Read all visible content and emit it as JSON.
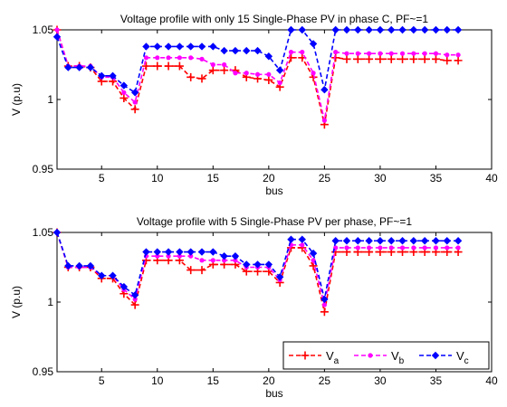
{
  "chart_data": [
    {
      "type": "line",
      "title": "Voltage profile with only 15 Single-Phase PV in phase C, PF~=1",
      "xlabel": "bus",
      "ylabel": "V (p.u)",
      "xlim": [
        1,
        40
      ],
      "ylim": [
        0.95,
        1.05
      ],
      "xticks": [
        5,
        10,
        15,
        20,
        25,
        30,
        35,
        40
      ],
      "xtick_labels": [
        "5",
        "10",
        "15",
        "20",
        "25",
        "30",
        "35",
        "40"
      ],
      "yticks": [
        0.95,
        1,
        1.05
      ],
      "ytick_labels": [
        "0.95",
        "1",
        "1.05"
      ],
      "grid": false,
      "legend": null,
      "x": [
        1,
        2,
        3,
        4,
        5,
        6,
        7,
        8,
        9,
        10,
        11,
        12,
        13,
        14,
        15,
        16,
        17,
        18,
        19,
        20,
        21,
        22,
        23,
        24,
        25,
        26,
        27,
        28,
        29,
        30,
        31,
        32,
        33,
        34,
        35,
        36,
        37
      ],
      "series": [
        {
          "key": "a",
          "color": "#ff0000",
          "marker": "plus",
          "values": [
            1.05,
            1.024,
            1.024,
            1.023,
            1.013,
            1.013,
            1.001,
            0.993,
            1.024,
            1.024,
            1.024,
            1.024,
            1.016,
            1.015,
            1.021,
            1.021,
            1.021,
            1.016,
            1.015,
            1.014,
            1.009,
            1.03,
            1.03,
            1.016,
            0.982,
            1.03,
            1.029,
            1.029,
            1.029,
            1.029,
            1.029,
            1.029,
            1.029,
            1.029,
            1.029,
            1.028,
            1.028
          ]
        },
        {
          "key": "b",
          "color": "#ff00ff",
          "marker": "dot",
          "values": [
            1.05,
            1.024,
            1.024,
            1.024,
            1.016,
            1.016,
            1.005,
            0.998,
            1.03,
            1.03,
            1.03,
            1.03,
            1.03,
            1.029,
            1.025,
            1.025,
            1.019,
            1.019,
            1.018,
            1.018,
            1.012,
            1.034,
            1.034,
            1.019,
            0.985,
            1.034,
            1.033,
            1.033,
            1.033,
            1.033,
            1.033,
            1.033,
            1.033,
            1.033,
            1.033,
            1.032,
            1.032
          ]
        },
        {
          "key": "c",
          "color": "#0000ff",
          "marker": "diamond",
          "values": [
            1.045,
            1.023,
            1.023,
            1.023,
            1.017,
            1.017,
            1.01,
            1.005,
            1.038,
            1.038,
            1.038,
            1.038,
            1.038,
            1.038,
            1.038,
            1.035,
            1.035,
            1.035,
            1.035,
            1.031,
            1.021,
            1.05,
            1.05,
            1.04,
            1.007,
            1.05,
            1.05,
            1.05,
            1.05,
            1.05,
            1.05,
            1.05,
            1.05,
            1.05,
            1.05,
            1.05,
            1.05
          ]
        }
      ]
    },
    {
      "type": "line",
      "title": "Voltage profile with 5 Single-Phase PV per phase, PF~=1",
      "xlabel": "bus",
      "ylabel": "V (p.u)",
      "xlim": [
        1,
        40
      ],
      "ylim": [
        0.95,
        1.05
      ],
      "xticks": [
        5,
        10,
        15,
        20,
        25,
        30,
        35,
        40
      ],
      "xtick_labels": [
        "5",
        "10",
        "15",
        "20",
        "25",
        "30",
        "35",
        "40"
      ],
      "yticks": [
        0.95,
        1,
        1.05
      ],
      "ytick_labels": [
        "0.95",
        "1",
        "1.05"
      ],
      "grid": false,
      "legend": "bottom-right",
      "x": [
        1,
        2,
        3,
        4,
        5,
        6,
        7,
        8,
        9,
        10,
        11,
        12,
        13,
        14,
        15,
        16,
        17,
        18,
        19,
        20,
        21,
        22,
        23,
        24,
        25,
        26,
        27,
        28,
        29,
        30,
        31,
        32,
        33,
        34,
        35,
        36,
        37
      ],
      "series": [
        {
          "key": "a",
          "name_main": "V",
          "name_sub": "a",
          "color": "#ff0000",
          "marker": "plus",
          "values": [
            1.05,
            1.025,
            1.025,
            1.025,
            1.017,
            1.017,
            1.006,
            0.998,
            1.03,
            1.03,
            1.03,
            1.03,
            1.023,
            1.023,
            1.027,
            1.027,
            1.027,
            1.022,
            1.022,
            1.022,
            1.014,
            1.039,
            1.039,
            1.026,
            0.993,
            1.036,
            1.036,
            1.036,
            1.036,
            1.036,
            1.036,
            1.036,
            1.036,
            1.036,
            1.036,
            1.036,
            1.036
          ]
        },
        {
          "key": "b",
          "name_main": "V",
          "name_sub": "b",
          "color": "#ff00ff",
          "marker": "dot",
          "values": [
            1.05,
            1.025,
            1.025,
            1.025,
            1.019,
            1.019,
            1.009,
            1.002,
            1.033,
            1.033,
            1.033,
            1.033,
            1.033,
            1.03,
            1.03,
            1.03,
            1.03,
            1.025,
            1.025,
            1.025,
            1.016,
            1.041,
            1.041,
            1.03,
            0.998,
            1.039,
            1.039,
            1.039,
            1.039,
            1.039,
            1.039,
            1.039,
            1.039,
            1.039,
            1.039,
            1.039,
            1.039
          ]
        },
        {
          "key": "c",
          "name_main": "V",
          "name_sub": "c",
          "color": "#0000ff",
          "marker": "diamond",
          "values": [
            1.05,
            1.026,
            1.026,
            1.026,
            1.019,
            1.019,
            1.011,
            1.005,
            1.036,
            1.036,
            1.036,
            1.036,
            1.036,
            1.036,
            1.036,
            1.033,
            1.033,
            1.027,
            1.027,
            1.027,
            1.018,
            1.045,
            1.045,
            1.035,
            1.002,
            1.044,
            1.044,
            1.044,
            1.044,
            1.044,
            1.044,
            1.044,
            1.044,
            1.044,
            1.044,
            1.044,
            1.044
          ]
        }
      ]
    }
  ]
}
